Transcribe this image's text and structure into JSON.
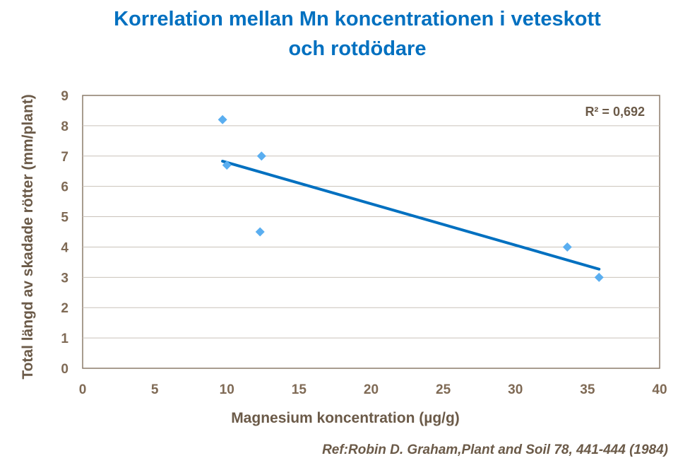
{
  "chart_data": {
    "type": "scatter",
    "title": "Korrelation mellan Mn koncentrationen i veteskott\noch rotdödare",
    "xlabel": "Magnesium koncentration (µg/g)",
    "ylabel": "Total längd av skadade rötter (mm/plant)",
    "xlim": [
      0,
      40
    ],
    "ylim": [
      0,
      9
    ],
    "xticks": [
      0,
      5,
      10,
      15,
      20,
      25,
      30,
      35,
      40
    ],
    "yticks": [
      0,
      1,
      2,
      3,
      4,
      5,
      6,
      7,
      8,
      9
    ],
    "grid": true,
    "series": [
      {
        "name": "data",
        "color": "#5aaef0",
        "marker": "diamond",
        "points": [
          {
            "x": 9.7,
            "y": 8.2
          },
          {
            "x": 10.0,
            "y": 6.7
          },
          {
            "x": 12.4,
            "y": 7.0
          },
          {
            "x": 12.3,
            "y": 4.5
          },
          {
            "x": 33.6,
            "y": 4.0
          },
          {
            "x": 35.8,
            "y": 3.0
          }
        ]
      }
    ],
    "trendline": {
      "type": "linear",
      "x_start": 9.7,
      "y_start": 6.83,
      "x_end": 35.8,
      "y_end": 3.27,
      "color": "#0070c0",
      "r2_label": "R² = 0,692"
    }
  },
  "footer": {
    "reference": "Ref:Robin D. Graham,Plant and Soil 78, 441-444 (1984)"
  }
}
